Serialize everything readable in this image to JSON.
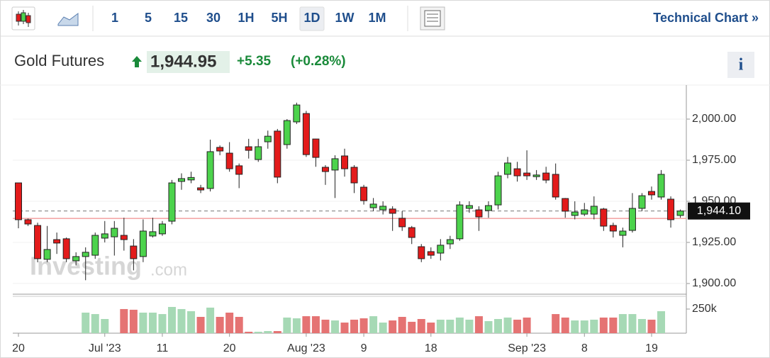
{
  "toolbar": {
    "intervals": [
      "1",
      "5",
      "15",
      "30",
      "1H",
      "5H",
      "1D",
      "1W",
      "1M"
    ],
    "selected": 6,
    "link": "Technical Chart »"
  },
  "header": {
    "name": "Gold Futures",
    "price": "1,944.95",
    "change": "+5.35",
    "change_pct": "(+0.28%)",
    "info": "i"
  },
  "chart_data": {
    "type": "candlestick",
    "watermark": [
      "Investing",
      ".com"
    ],
    "categories": [
      "20",
      null,
      null,
      null,
      null,
      null,
      null,
      null,
      null,
      "Jul '23",
      null,
      null,
      null,
      null,
      null,
      "11",
      null,
      null,
      null,
      null,
      null,
      null,
      "20",
      null,
      null,
      null,
      null,
      null,
      null,
      null,
      "Aug '23",
      null,
      null,
      null,
      null,
      null,
      "9",
      null,
      null,
      null,
      null,
      null,
      null,
      "18",
      null,
      null,
      null,
      null,
      null,
      null,
      null,
      null,
      null,
      "Sep '23",
      null,
      null,
      null,
      null,
      null,
      "8",
      null,
      null,
      null,
      null,
      null,
      null,
      "19",
      null,
      null,
      null
    ],
    "open": [
      1961.2,
      1938.8,
      1935.3,
      1914.7,
      1926.7,
      1927.2,
      1913.8,
      1916.4,
      1917.2,
      1927.6,
      1928.4,
      1929.3,
      1922.8,
      1916.4,
      1928.9,
      1930.2,
      1937.9,
      1962.1,
      1963.0,
      1958.2,
      1957.8,
      1982.8,
      1979.3,
      1971.6,
      1983.2,
      1975.4,
      1986.2,
      1992.7,
      1984.5,
      1998.3,
      2003.4,
      1987.9,
      1970.7,
      1969.0,
      1977.6,
      1970.7,
      1958.6,
      1946.1,
      1944.8,
      1945.3,
      1939.7,
      1934.0,
      1922.4,
      1919.4,
      1918.5,
      1924.1,
      1927.2,
      1945.7,
      1944.8,
      1944.4,
      1947.8,
      1966.4,
      1969.8,
      1967.2,
      1965.0,
      1967.2,
      1966.4,
      1951.7,
      1941.4,
      1942.2,
      1942.2,
      1945.3,
      1935.3,
      1929.3,
      1932.3,
      1945.7,
      1956.0,
      1952.6,
      1951.3,
      1941.4
    ],
    "high": [
      1961.2,
      1939.5,
      1937.0,
      1935.0,
      1931.0,
      1928.0,
      1919.0,
      1922.0,
      1931.0,
      1938.0,
      1938.0,
      1940.0,
      1927.0,
      1939.0,
      1940.0,
      1938.0,
      1963.0,
      1967.0,
      1968.0,
      1960.0,
      1987.5,
      1984.0,
      1986.0,
      1973.0,
      1988.0,
      1988.0,
      1993.0,
      1994.0,
      2000.0,
      2010.0,
      2005.0,
      1988.0,
      1972.0,
      1978.0,
      1982.0,
      1972.0,
      1960.0,
      1952.0,
      1950.0,
      1947.0,
      1944.0,
      1935.0,
      1924.0,
      1922.0,
      1927.0,
      1929.0,
      1950.0,
      1950.0,
      1947.0,
      1950.0,
      1968.0,
      1977.0,
      1974.0,
      1981.0,
      1969.0,
      1971.0,
      1973.0,
      1952.0,
      1950.0,
      1949.0,
      1953.0,
      1946.0,
      1937.0,
      1934.0,
      1955.0,
      1955.0,
      1959.0,
      1969.0,
      1953.0,
      1945.0
    ],
    "low": [
      1933.6,
      1935.0,
      1912.9,
      1913.0,
      1918.0,
      1913.0,
      1911.0,
      1902.0,
      1915.0,
      1925.0,
      1917.0,
      1920.0,
      1908.0,
      1913.0,
      1928.0,
      1929.0,
      1936.0,
      1957.0,
      1961.0,
      1955.0,
      1956.0,
      1978.0,
      1968.0,
      1958.0,
      1976.0,
      1974.0,
      1982.0,
      1961.0,
      1982.0,
      1997.0,
      1977.0,
      1971.0,
      1960.0,
      1952.0,
      1965.0,
      1955.0,
      1948.0,
      1944.0,
      1942.0,
      1932.0,
      1932.0,
      1924.0,
      1913.0,
      1915.0,
      1914.0,
      1921.0,
      1926.0,
      1943.0,
      1932.0,
      1940.0,
      1945.0,
      1964.0,
      1962.0,
      1963.0,
      1963.0,
      1961.0,
      1951.0,
      1940.0,
      1939.0,
      1941.0,
      1939.0,
      1932.0,
      1928.0,
      1922.0,
      1931.0,
      1944.0,
      1951.0,
      1951.0,
      1934.0,
      1940.0
    ],
    "close": [
      1938.8,
      1936.2,
      1915.1,
      1920.7,
      1924.6,
      1915.1,
      1916.4,
      1919.0,
      1929.3,
      1930.2,
      1933.6,
      1926.7,
      1915.1,
      1931.9,
      1931.5,
      1936.2,
      1961.2,
      1963.8,
      1964.5,
      1956.9,
      1980.2,
      1980.6,
      1969.8,
      1966.4,
      1981.0,
      1983.2,
      1989.6,
      1964.7,
      1999.1,
      2008.6,
      1978.4,
      1976.7,
      1968.1,
      1975.9,
      1969.8,
      1961.2,
      1950.4,
      1948.3,
      1947.0,
      1942.7,
      1934.5,
      1928.0,
      1915.1,
      1917.2,
      1923.3,
      1926.7,
      1947.8,
      1947.4,
      1940.5,
      1947.4,
      1965.5,
      1973.3,
      1965.5,
      1965.5,
      1966.0,
      1962.9,
      1952.6,
      1944.0,
      1943.5,
      1944.8,
      1947.0,
      1934.9,
      1931.9,
      1931.9,
      1945.7,
      1953.4,
      1953.9,
      1966.4,
      1938.8,
      1944.1
    ],
    "volume": [
      null,
      null,
      null,
      null,
      null,
      null,
      null,
      213000,
      198000,
      147000,
      null,
      250000,
      243000,
      213000,
      213000,
      198000,
      272000,
      250000,
      228000,
      169000,
      265000,
      169000,
      213000,
      169000,
      15000,
      15000,
      22000,
      22000,
      162000,
      154000,
      176000,
      176000,
      140000,
      132000,
      110000,
      140000,
      154000,
      176000,
      110000,
      132000,
      169000,
      118000,
      147000,
      110000,
      140000,
      140000,
      162000,
      140000,
      176000,
      125000,
      147000,
      162000,
      140000,
      162000,
      null,
      null,
      198000,
      162000,
      132000,
      132000,
      140000,
      162000,
      162000,
      198000,
      198000,
      147000,
      140000,
      228000,
      null,
      null
    ],
    "up_color": "#4cd34c",
    "down_color": "#e31b1b",
    "volume_up_color": "#a6d9b5",
    "volume_down_color": "#e57373",
    "ylim": [
      1893.5,
      2020.7
    ],
    "yticks": [
      {
        "value": 1900,
        "label": "1,900.00"
      },
      {
        "value": 1925,
        "label": "1,925.00"
      },
      {
        "value": 1950,
        "label": "1,950.00"
      },
      {
        "value": 1975,
        "label": "1,975.00"
      },
      {
        "value": 2000,
        "label": "2,000.00"
      }
    ],
    "volume_ylim": [
      0,
      382000
    ],
    "volume_ticks": [
      {
        "value": 250000,
        "label": "250k"
      }
    ],
    "last_price": {
      "value": 1944.1,
      "label": "1,944.10"
    },
    "prev_close": 1939.6
  }
}
